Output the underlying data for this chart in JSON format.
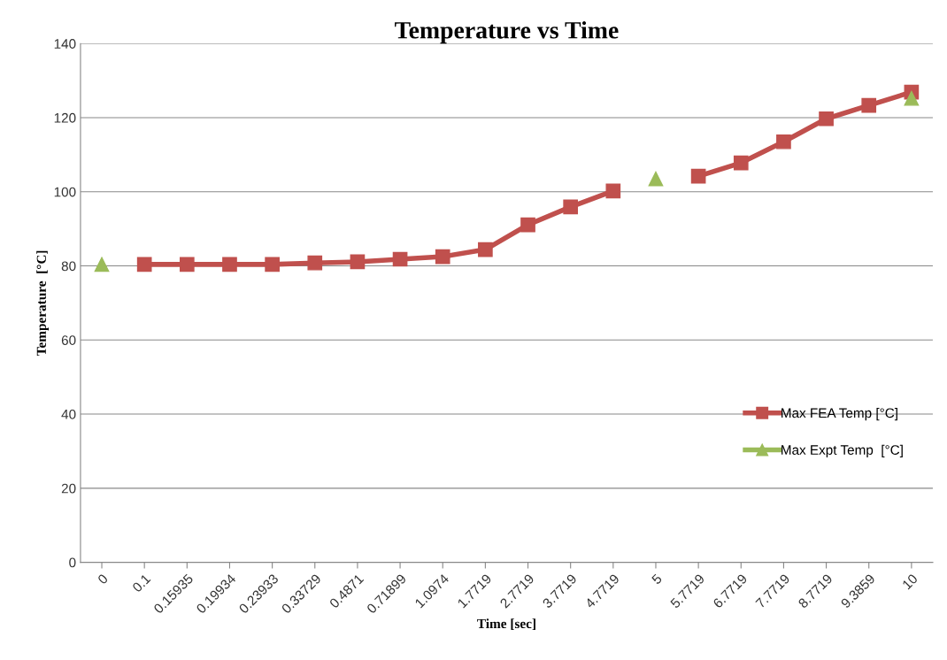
{
  "chart_data": {
    "type": "line",
    "title": "Temperature vs Time",
    "xlabel": "Time [sec]",
    "ylabel": "Temperature  [°C]",
    "categories": [
      "0",
      "0.1",
      "0.15935",
      "0.19934",
      "0.23933",
      "0.33729",
      "0.4871",
      "0.71899",
      "1.0974",
      "1.7719",
      "2.7719",
      "3.7719",
      "4.7719",
      "5",
      "5.7719",
      "6.7719",
      "7.7719",
      "8.7719",
      "9.3859",
      "10"
    ],
    "series": [
      {
        "name": "Max FEA Temp [°C]",
        "color": "#c0504d",
        "marker": "square",
        "line_style": "solid",
        "values": [
          null,
          80.4,
          80.4,
          80.4,
          80.4,
          80.8,
          81.1,
          81.8,
          82.5,
          84.4,
          91.1,
          95.9,
          100.2,
          null,
          104.2,
          107.8,
          113.5,
          119.7,
          123.3,
          126.9
        ]
      },
      {
        "name": "Max Expt Temp  [°C]",
        "color": "#9bbb59",
        "marker": "triangle",
        "line_style": "none",
        "values": [
          80.4,
          null,
          null,
          null,
          null,
          null,
          null,
          null,
          null,
          null,
          null,
          null,
          null,
          103.5,
          null,
          null,
          null,
          null,
          null,
          125.2
        ]
      }
    ],
    "ylim": [
      0,
      140
    ],
    "yticks": [
      0,
      20,
      40,
      60,
      80,
      100,
      120,
      140
    ],
    "grid": "y",
    "legend": "right"
  }
}
